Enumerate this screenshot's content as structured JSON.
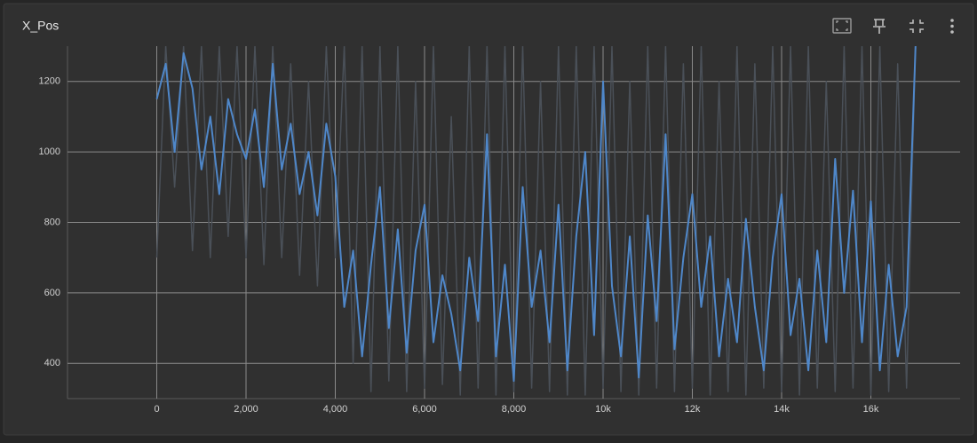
{
  "chart_data": {
    "type": "line",
    "title": "X_Pos",
    "x": [
      0,
      200,
      400,
      600,
      800,
      1000,
      1200,
      1400,
      1600,
      1800,
      2000,
      2200,
      2400,
      2600,
      2800,
      3000,
      3200,
      3400,
      3600,
      3800,
      4000,
      4200,
      4400,
      4600,
      4800,
      5000,
      5200,
      5400,
      5600,
      5800,
      6000,
      6200,
      6400,
      6600,
      6800,
      7000,
      7200,
      7400,
      7600,
      7800,
      8000,
      8200,
      8400,
      8600,
      8800,
      9000,
      9200,
      9400,
      9600,
      9800,
      10000,
      10200,
      10400,
      10600,
      10800,
      11000,
      11200,
      11400,
      11600,
      11800,
      12000,
      12200,
      12400,
      12600,
      12800,
      13000,
      13200,
      13400,
      13600,
      13800,
      14000,
      14200,
      14400,
      14600,
      14800,
      15000,
      15200,
      15400,
      15600,
      15800,
      16000,
      16200,
      16400,
      16600,
      16800,
      17000
    ],
    "series": [
      {
        "color": "#4a5058",
        "values": [
          700,
          1300,
          900,
          1300,
          720,
          1300,
          700,
          1300,
          760,
          1300,
          700,
          1300,
          680,
          1300,
          700,
          1250,
          650,
          1200,
          620,
          1300,
          700,
          1300,
          400,
          1300,
          320,
          1300,
          350,
          1300,
          320,
          1200,
          330,
          1300,
          340,
          1100,
          310,
          1300,
          330,
          1300,
          310,
          1300,
          320,
          1300,
          330,
          1200,
          320,
          1300,
          310,
          1300,
          310,
          1300,
          330,
          1300,
          320,
          1200,
          310,
          1300,
          330,
          1300,
          320,
          1250,
          330,
          1300,
          310,
          1200,
          320,
          1300,
          310,
          1250,
          330,
          1300,
          320,
          1300,
          310,
          1300,
          330,
          1200,
          320,
          1300,
          330,
          1300,
          310,
          1300,
          320,
          1250,
          330,
          1300
        ]
      },
      {
        "color": "#4f87c9",
        "values": [
          1150,
          1250,
          1000,
          1280,
          1180,
          950,
          1100,
          880,
          1150,
          1050,
          980,
          1120,
          900,
          1250,
          950,
          1080,
          880,
          1000,
          820,
          1080,
          930,
          560,
          720,
          420,
          680,
          900,
          500,
          780,
          430,
          720,
          850,
          460,
          650,
          540,
          380,
          700,
          520,
          1050,
          420,
          680,
          350,
          900,
          560,
          720,
          460,
          850,
          380,
          760,
          1000,
          480,
          1200,
          620,
          420,
          760,
          360,
          820,
          520,
          1050,
          440,
          700,
          880,
          560,
          760,
          420,
          640,
          460,
          810,
          560,
          380,
          700,
          880,
          480,
          640,
          380,
          720,
          460,
          980,
          600,
          890,
          460,
          860,
          380,
          680,
          420,
          560,
          1300
        ]
      }
    ],
    "xlim": [
      -2000,
      18000
    ],
    "ylim": [
      300,
      1300
    ],
    "xticks": [
      0,
      {
        "value": 2000,
        "label": "2,000"
      },
      {
        "value": 4000,
        "label": "4,000"
      },
      {
        "value": 6000,
        "label": "6,000"
      },
      {
        "value": 8000,
        "label": "8,000"
      },
      {
        "value": 10000,
        "label": "10k"
      },
      {
        "value": 12000,
        "label": "12k"
      },
      {
        "value": 14000,
        "label": "14k"
      },
      {
        "value": 16000,
        "label": "16k"
      }
    ],
    "yticks": [
      400,
      600,
      800,
      1000,
      1200
    ],
    "grid": true
  }
}
